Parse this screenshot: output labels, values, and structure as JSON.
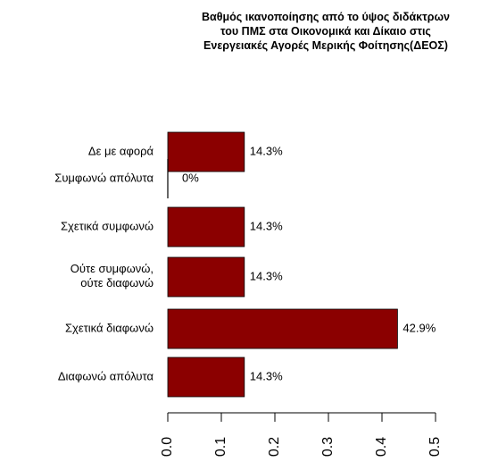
{
  "chart_data": {
    "type": "barh",
    "title": "Βαθμός ικανοποίησης από το ύψος διδάκτρων\nτου ΠΜΣ στα Οικονομικά και Δίκαιο στις\nΕνεργειακές Αγορές Μερικής Φοίτησης(ΔΕΟΣ)",
    "categories": [
      "Δε με αφορά",
      "Συμφωνώ απόλυτα",
      "Σχετικά συμφωνώ",
      "Ούτε συμφωνώ,\nούτε διαφωνώ",
      "Σχετικά διαφωνώ",
      "Διαφωνώ απόλυτα"
    ],
    "values": [
      0.143,
      0,
      0.143,
      0.143,
      0.429,
      0.143
    ],
    "value_labels": [
      "14.3%",
      "0%",
      "14.3%",
      "14.3%",
      "42.9%",
      "14.3%"
    ],
    "color": "#8b0000",
    "xlim": [
      0,
      0.5
    ],
    "xticks": [
      {
        "value": 0,
        "label": "0.0"
      },
      0.1,
      0.2,
      0.3,
      0.4,
      0.5
    ]
  }
}
